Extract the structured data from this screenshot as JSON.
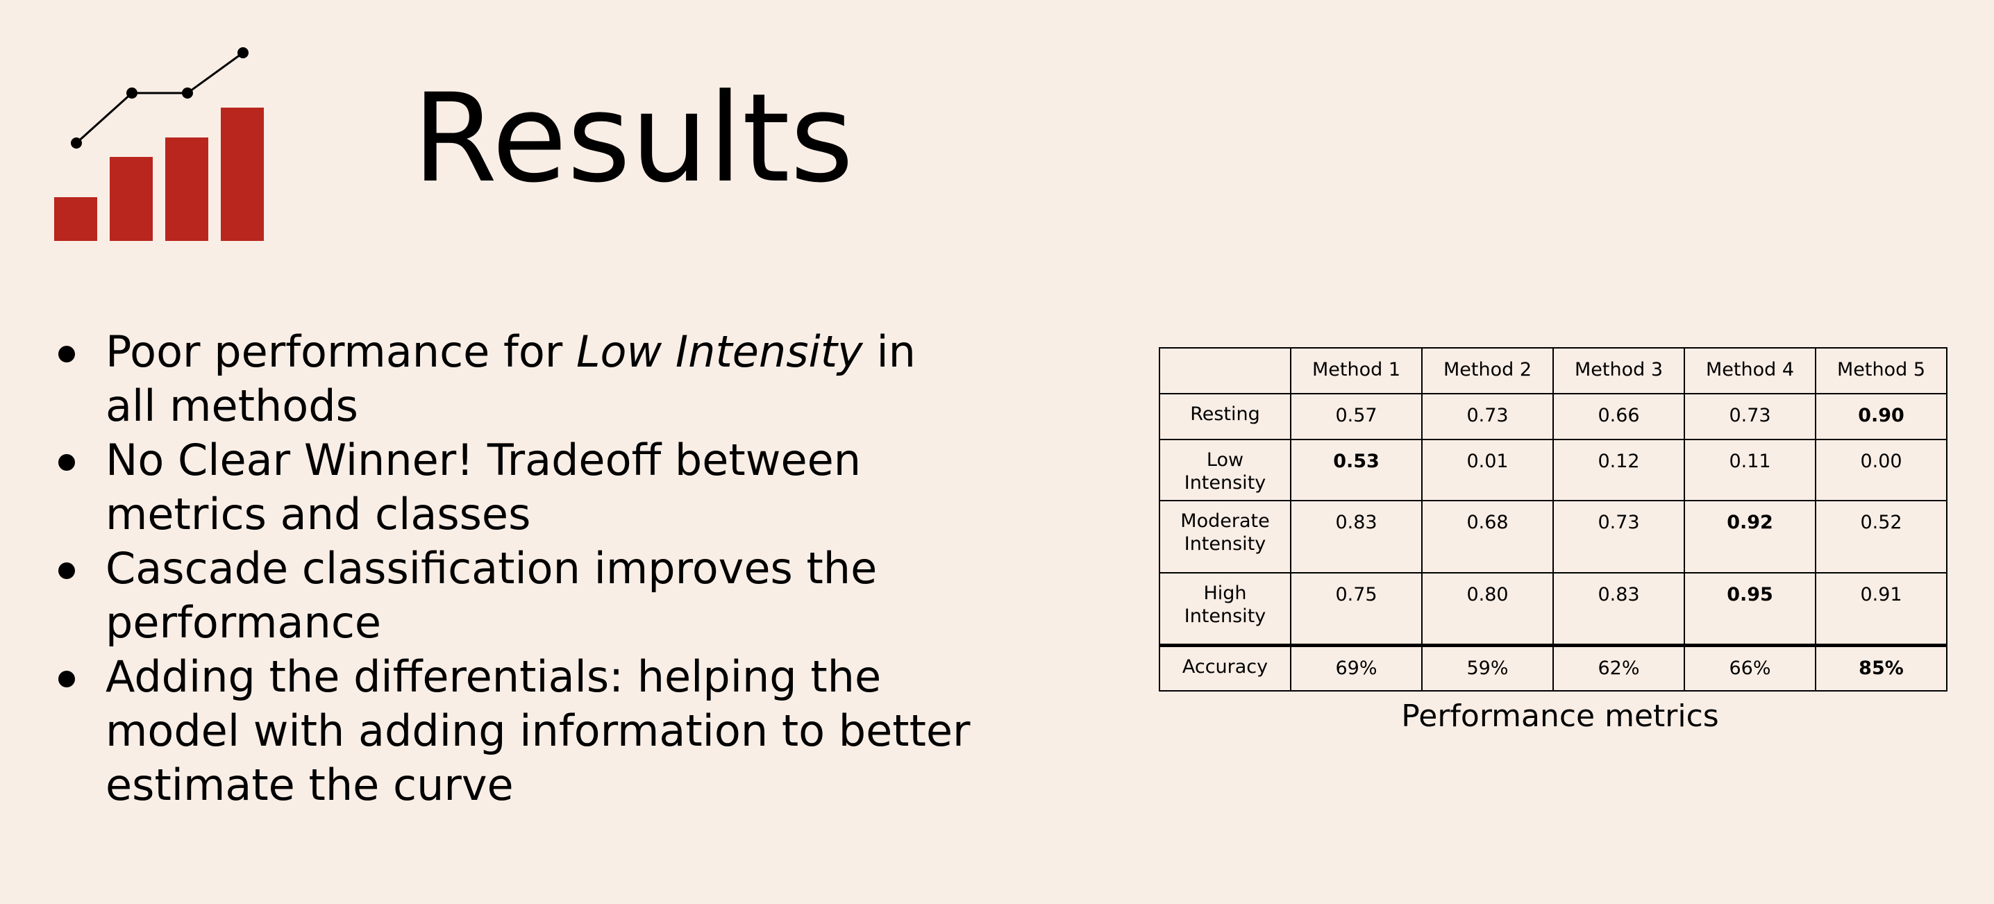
{
  "slide": {
    "title": "Results",
    "logo_icon": "bar-chart-trend-icon",
    "accent_color": "#b8261e"
  },
  "bullets": [
    {
      "pre": "Poor performance for ",
      "em": "Low Intensity",
      "post": " in all methods"
    },
    {
      "pre": "No Clear Winner! Tradeoff between metrics and classes",
      "em": "",
      "post": ""
    },
    {
      "pre": "Cascade classification improves the performance",
      "em": "",
      "post": ""
    },
    {
      "pre": "Adding the differentials: helping the model with adding information to better estimate the curve",
      "em": "",
      "post": ""
    }
  ],
  "table": {
    "caption": "Performance metrics",
    "corner": "",
    "columns": [
      "Method 1",
      "Method 2",
      "Method 3",
      "Method 4",
      "Method 5"
    ],
    "rows": [
      {
        "label": "Resting",
        "values": [
          "0.57",
          "0.73",
          "0.66",
          "0.73",
          "0.90"
        ],
        "bold": [
          4
        ]
      },
      {
        "label": "Low Intensity",
        "values": [
          "0.53",
          "0.01",
          "0.12",
          "0.11",
          "0.00"
        ],
        "bold": [
          0
        ]
      },
      {
        "label": "Moderate Intensity",
        "values": [
          "0.83",
          "0.68",
          "0.73",
          "0.92",
          "0.52"
        ],
        "bold": [
          3
        ]
      },
      {
        "label": "High Intensity",
        "values": [
          "0.75",
          "0.80",
          "0.83",
          "0.95",
          "0.91"
        ],
        "bold": [
          3
        ]
      },
      {
        "label": "Accuracy",
        "values": [
          "69%",
          "59%",
          "62%",
          "66%",
          "85%"
        ],
        "bold": [
          4
        ]
      }
    ]
  }
}
